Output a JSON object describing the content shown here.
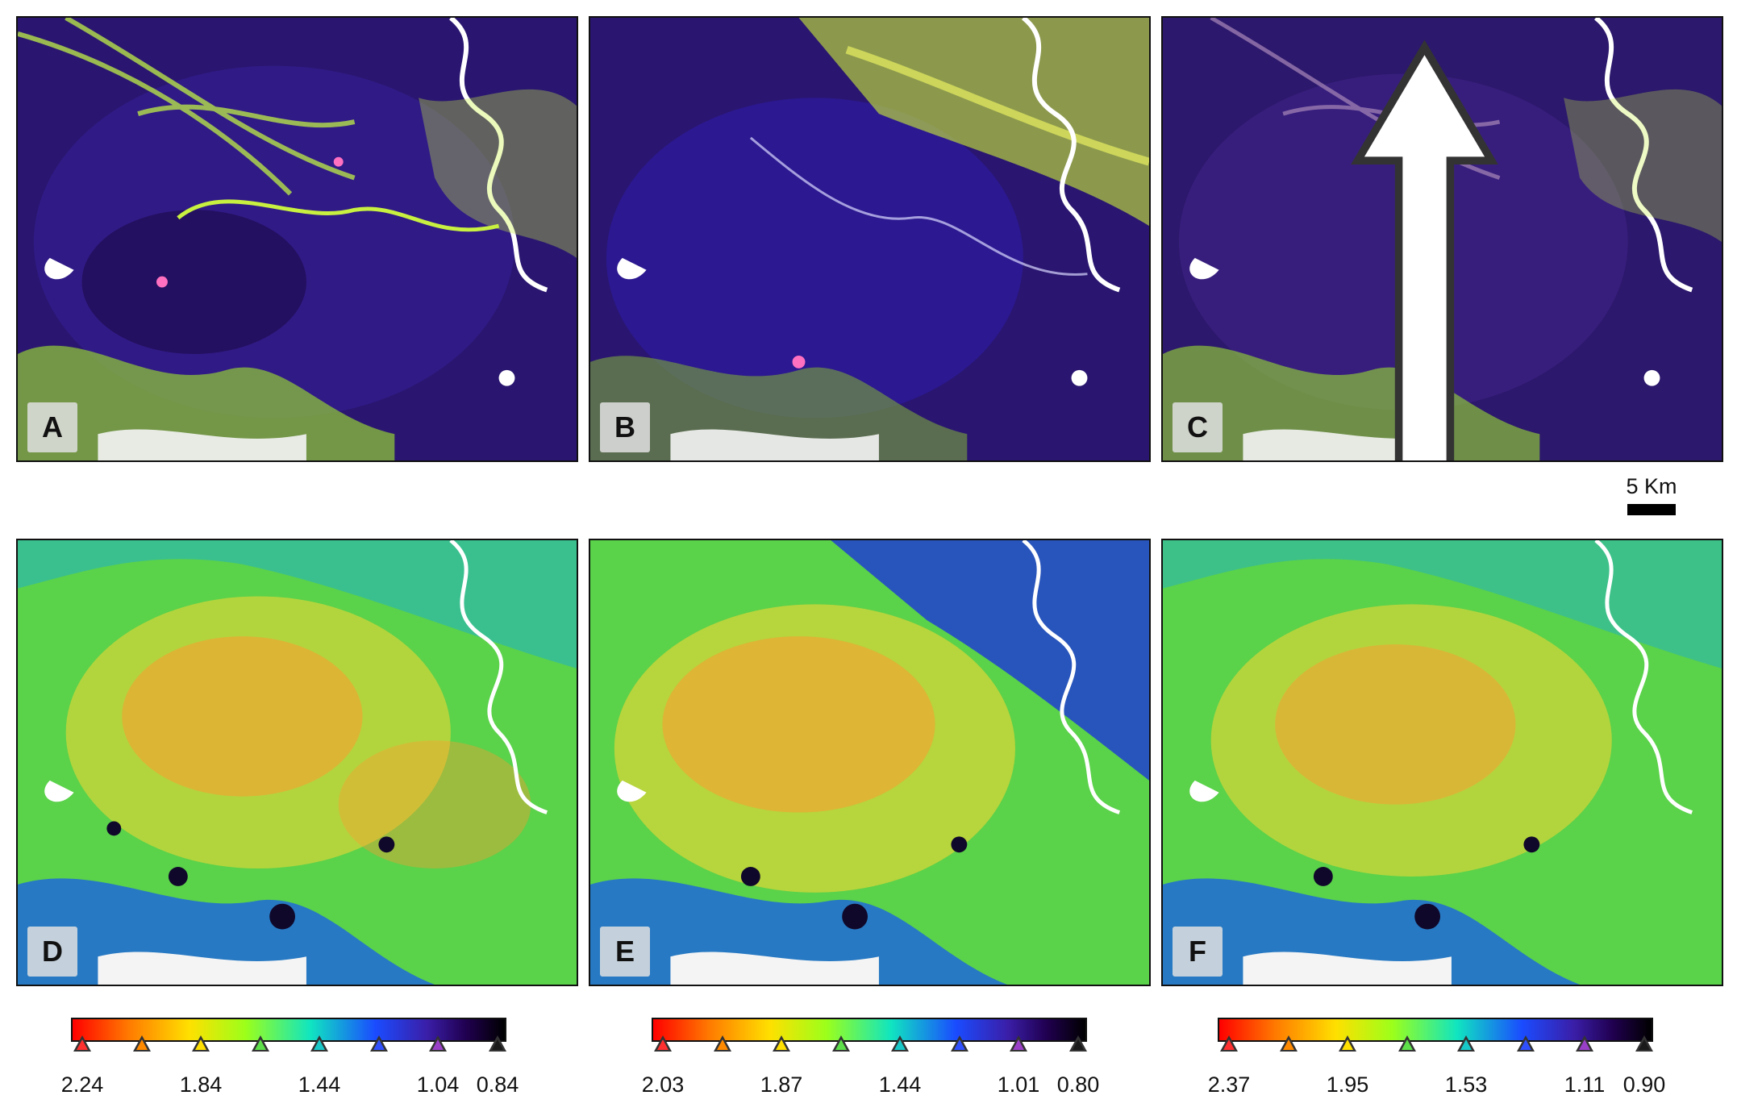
{
  "panels": [
    {
      "label": "A",
      "kind": "rgb"
    },
    {
      "label": "B",
      "kind": "rgb"
    },
    {
      "label": "C",
      "kind": "rgb"
    },
    {
      "label": "D",
      "kind": "heat"
    },
    {
      "label": "E",
      "kind": "heat"
    },
    {
      "label": "F",
      "kind": "heat"
    }
  ],
  "north_arrow_icon": "north-arrow-icon",
  "scalebar": {
    "label": "5 Km"
  },
  "legends": [
    {
      "labels": [
        "2.24",
        "1.84",
        "1.44",
        "1.04",
        "0.84"
      ]
    },
    {
      "labels": [
        "2.03",
        "1.87",
        "1.44",
        "1.01",
        "0.80"
      ]
    },
    {
      "labels": [
        "2.37",
        "1.95",
        "1.53",
        "1.11",
        "0.90"
      ]
    }
  ],
  "legend_tick_colors": [
    "#ff3030",
    "#ff8a00",
    "#ffe000",
    "#5ee04a",
    "#18c8c8",
    "#3050ff",
    "#9a40c8",
    "#1a1a1a"
  ]
}
